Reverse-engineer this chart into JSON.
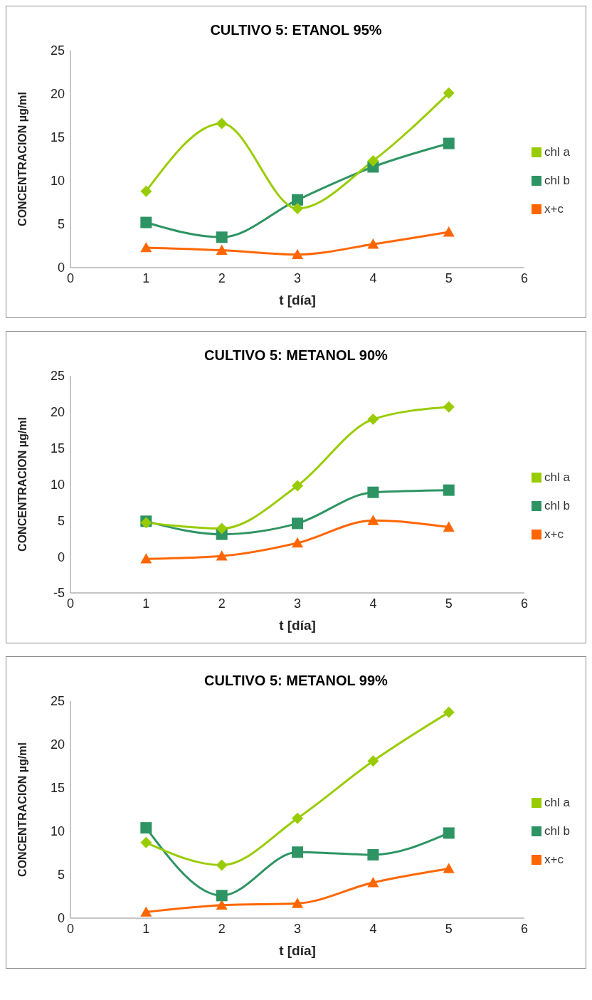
{
  "chart_data": [
    {
      "type": "line",
      "title": "CULTIVO 5: ETANOL 95%",
      "xlabel": "t [día]",
      "ylabel": "CONCENTRACION µg/ml",
      "x": [
        1,
        2,
        3,
        4,
        5
      ],
      "xlim": [
        0,
        6
      ],
      "xticks": [
        0,
        1,
        2,
        3,
        4,
        5,
        6
      ],
      "ylim": [
        0,
        25
      ],
      "yticks": [
        0,
        5,
        10,
        15,
        20,
        25
      ],
      "grid": false,
      "legend": "right",
      "series": [
        {
          "name": "x+c",
          "color": "#ff6600",
          "marker": "triangle",
          "values": [
            2.3,
            2.0,
            1.5,
            2.7,
            4.1
          ]
        },
        {
          "name": "chl b",
          "color": "#2e9463",
          "marker": "square",
          "values": [
            5.2,
            3.5,
            7.8,
            11.6,
            14.3
          ]
        },
        {
          "name": "chl a",
          "color": "#99cc00",
          "marker": "diamond",
          "values": [
            8.8,
            16.6,
            6.8,
            12.3,
            20.1
          ]
        }
      ]
    },
    {
      "type": "line",
      "title": "CULTIVO 5: METANOL 90%",
      "xlabel": "t [día]",
      "ylabel": "CONCENTRACION µg/ml",
      "x": [
        1,
        2,
        3,
        4,
        5
      ],
      "xlim": [
        0,
        6
      ],
      "xticks": [
        0,
        1,
        2,
        3,
        4,
        5,
        6
      ],
      "ylim": [
        -5,
        25
      ],
      "yticks": [
        -5,
        0,
        5,
        10,
        15,
        20,
        25
      ],
      "grid": false,
      "legend": "right",
      "series": [
        {
          "name": "x+c",
          "color": "#ff6600",
          "marker": "triangle",
          "values": [
            -0.3,
            0.1,
            1.9,
            5.0,
            4.1
          ]
        },
        {
          "name": "chl b",
          "color": "#2e9463",
          "marker": "square",
          "values": [
            4.9,
            3.1,
            4.6,
            8.9,
            9.2
          ]
        },
        {
          "name": "chl a",
          "color": "#99cc00",
          "marker": "diamond",
          "values": [
            4.7,
            3.9,
            9.8,
            19.0,
            20.7
          ]
        }
      ]
    },
    {
      "type": "line",
      "title": "CULTIVO 5: METANOL 99%",
      "xlabel": "t [día]",
      "ylabel": "CONCENTRACION µg/ml",
      "x": [
        1,
        2,
        3,
        4,
        5
      ],
      "xlim": [
        0,
        6
      ],
      "xticks": [
        0,
        1,
        2,
        3,
        4,
        5,
        6
      ],
      "ylim": [
        0,
        25
      ],
      "yticks": [
        0,
        5,
        10,
        15,
        20,
        25
      ],
      "grid": false,
      "legend": "right",
      "series": [
        {
          "name": "x+c",
          "color": "#ff6600",
          "marker": "triangle",
          "values": [
            0.7,
            1.5,
            1.7,
            4.1,
            5.7
          ]
        },
        {
          "name": "chl b",
          "color": "#2e9463",
          "marker": "square",
          "values": [
            10.4,
            2.6,
            7.6,
            7.3,
            9.8
          ]
        },
        {
          "name": "chl a",
          "color": "#99cc00",
          "marker": "diamond",
          "values": [
            8.7,
            6.1,
            11.5,
            18.1,
            23.7
          ]
        }
      ]
    }
  ]
}
